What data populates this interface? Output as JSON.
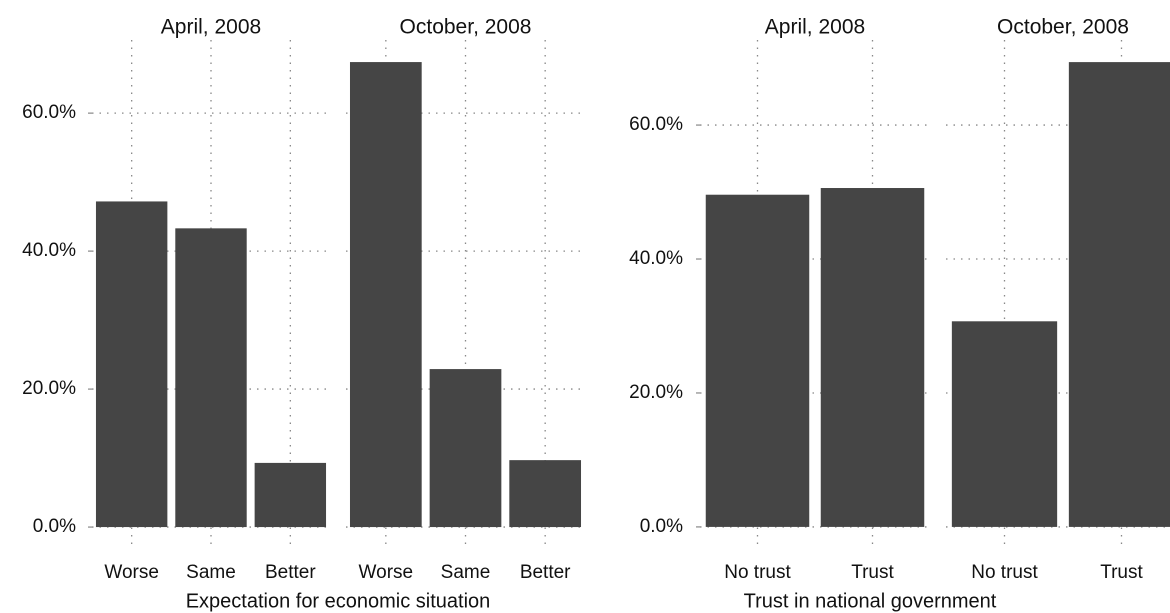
{
  "chart_data": [
    {
      "type": "bar",
      "xlabel": "Expectation for economic situation",
      "ylim": [
        -2.6,
        70.6
      ],
      "yticks": [
        {
          "value": 0,
          "label": "0.0%"
        },
        {
          "value": 20,
          "label": "20.0%"
        },
        {
          "value": 40,
          "label": "40.0%"
        },
        {
          "value": 60,
          "label": "60.0%"
        }
      ],
      "grid": true,
      "color": "#454545",
      "panels": [
        {
          "title": "April, 2008",
          "categories": [
            "Worse",
            "Same",
            "Better"
          ],
          "values": [
            47.2,
            43.3,
            9.3
          ]
        },
        {
          "title": "October, 2008",
          "categories": [
            "Worse",
            "Same",
            "Better"
          ],
          "values": [
            67.4,
            22.9,
            9.7
          ]
        }
      ]
    },
    {
      "type": "bar",
      "xlabel": "Trust in national government",
      "ylim": [
        -2.7,
        72.7
      ],
      "yticks": [
        {
          "value": 0,
          "label": "0.0%"
        },
        {
          "value": 20,
          "label": "20.0%"
        },
        {
          "value": 40,
          "label": "40.0%"
        },
        {
          "value": 60,
          "label": "60.0%"
        }
      ],
      "grid": true,
      "color": "#454545",
      "panels": [
        {
          "title": "April, 2008",
          "categories": [
            "No trust",
            "Trust"
          ],
          "values": [
            49.6,
            50.6
          ]
        },
        {
          "title": "October, 2008",
          "categories": [
            "No trust",
            "Trust"
          ],
          "values": [
            30.7,
            69.4
          ]
        }
      ]
    }
  ]
}
